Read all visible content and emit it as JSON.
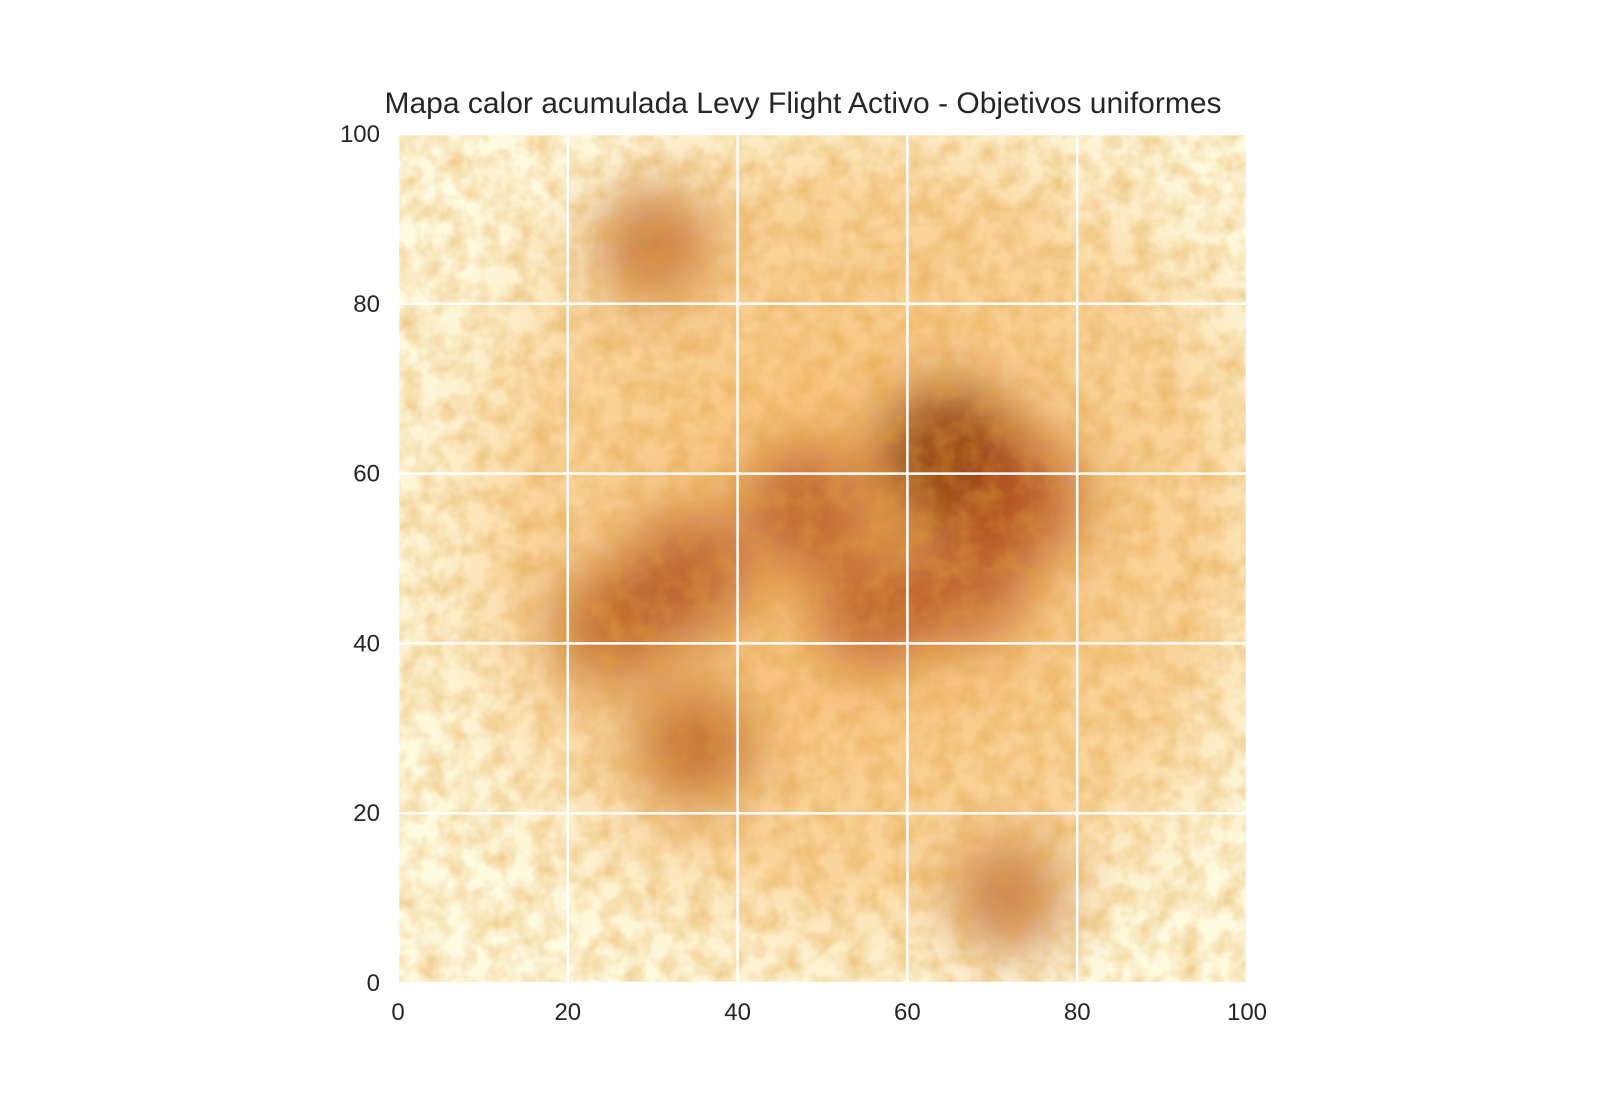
{
  "chart_data": {
    "type": "heatmap",
    "title": "Mapa calor acumulada Levy Flight Activo - Objetivos uniformes",
    "xlabel": "",
    "ylabel": "",
    "xlim": [
      0,
      100
    ],
    "ylim": [
      0,
      100
    ],
    "xticks": [
      0,
      20,
      40,
      60,
      80,
      100
    ],
    "yticks": [
      0,
      20,
      40,
      60,
      80,
      100
    ],
    "xtick_labels": [
      "0",
      "20",
      "40",
      "60",
      "80",
      "100"
    ],
    "ytick_labels": [
      "0",
      "20",
      "40",
      "60",
      "80",
      "100"
    ],
    "grid": true,
    "grid_color": "#ffffff",
    "colormap": "YlOrBr",
    "colors": {
      "low": "#fffbe0",
      "mid": "#f6b868",
      "high": "#a9420a",
      "peak": "#7a2a06"
    },
    "hotspots": [
      {
        "x": 65,
        "y": 62,
        "intensity": 1.0
      },
      {
        "x": 73,
        "y": 57,
        "intensity": 0.85
      },
      {
        "x": 34,
        "y": 48,
        "intensity": 0.8
      },
      {
        "x": 48,
        "y": 56,
        "intensity": 0.75
      },
      {
        "x": 56,
        "y": 44,
        "intensity": 0.7
      },
      {
        "x": 67,
        "y": 47,
        "intensity": 0.7
      },
      {
        "x": 25,
        "y": 42,
        "intensity": 0.65
      },
      {
        "x": 35,
        "y": 28,
        "intensity": 0.65
      },
      {
        "x": 30,
        "y": 87,
        "intensity": 0.55
      },
      {
        "x": 72,
        "y": 10,
        "intensity": 0.55
      }
    ]
  }
}
